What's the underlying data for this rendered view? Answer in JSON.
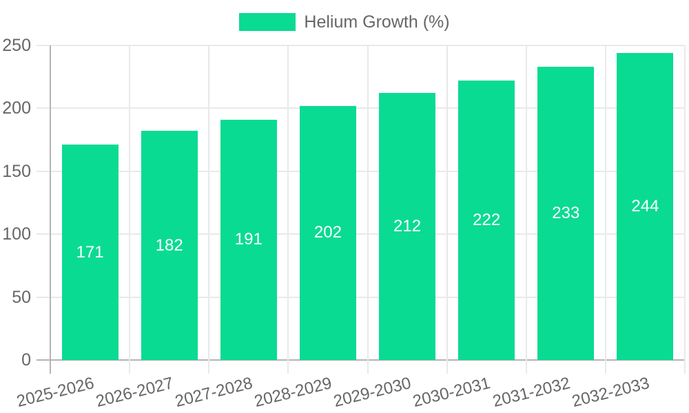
{
  "chart_data": {
    "type": "bar",
    "title": "",
    "legend": {
      "label": "Helium Growth (%)",
      "position": "top"
    },
    "categories": [
      "2025-2026",
      "2026-2027",
      "2027-2028",
      "2028-2029",
      "2029-2030",
      "2030-2031",
      "2031-2032",
      "2032-2033"
    ],
    "series": [
      {
        "name": "Helium Growth (%)",
        "values": [
          171,
          182,
          191,
          202,
          212,
          222,
          233,
          244
        ]
      }
    ],
    "value_labels_shown": true,
    "xlabel": "",
    "ylabel": "",
    "ylim": [
      0,
      250
    ],
    "yticks": [
      0,
      50,
      100,
      150,
      200,
      250
    ],
    "grid": true,
    "colors": {
      "bar": "#0adb92",
      "value_label": "#ffffff",
      "axis_text": "#666666",
      "grid_line": "#e9e9e9",
      "zero_line": "#b3b3b3",
      "background": "#ffffff"
    }
  }
}
